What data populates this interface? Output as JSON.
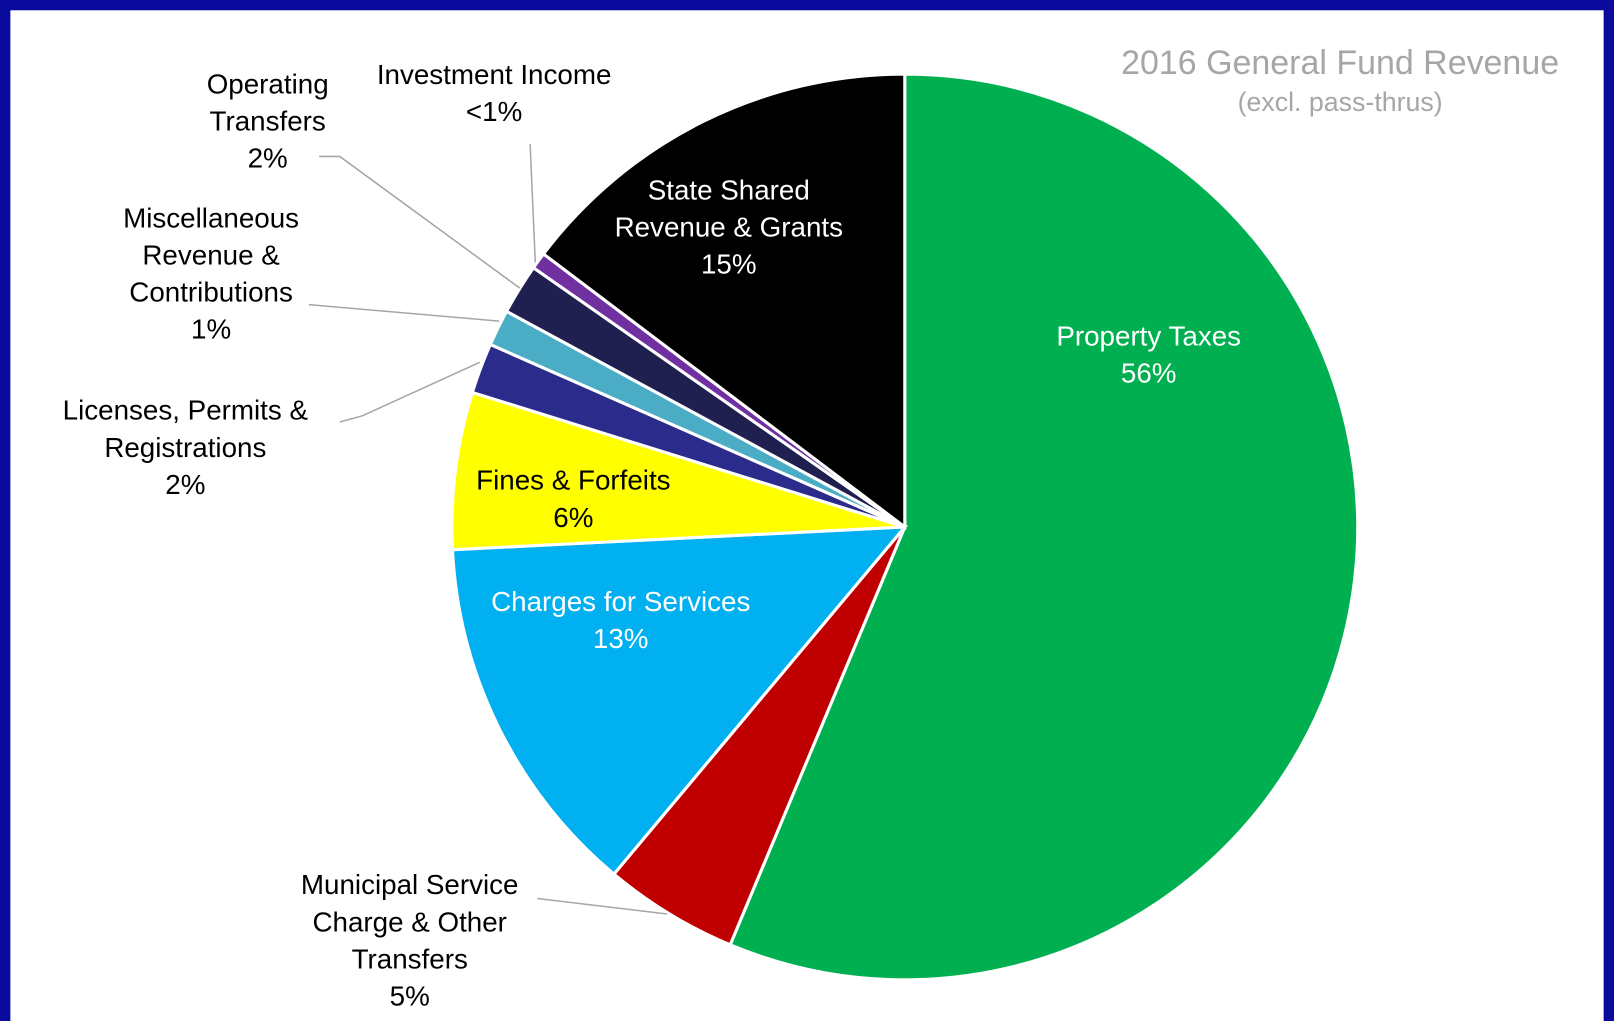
{
  "chart_data": {
    "type": "pie",
    "title": "2016 General Fund Revenue",
    "subtitle": "(excl. pass-thrus)",
    "categories": [
      "Property Taxes",
      "Municipal Service\nCharge & Other\nTransfers",
      "Charges for Services",
      "Fines & Forfeits",
      "Licenses, Permits &\nRegistrations",
      "Miscellaneous\nRevenue &\nContributions",
      "Operating\nTransfers",
      "Investment Income",
      "State Shared\nRevenue & Grants"
    ],
    "values": [
      56.3,
      4.8,
      13.1,
      5.6,
      1.8,
      1.3,
      1.8,
      0.6,
      14.7
    ],
    "value_labels": [
      "56%",
      "5%",
      "13%",
      "6%",
      "2%",
      "1%",
      "2%",
      "<1%",
      "15%"
    ],
    "colors": [
      "#00b050",
      "#c00000",
      "#00b0f0",
      "#ffff00",
      "#2b2b8c",
      "#4bacc6",
      "#1f1f50",
      "#7030a0",
      "#000000"
    ]
  }
}
